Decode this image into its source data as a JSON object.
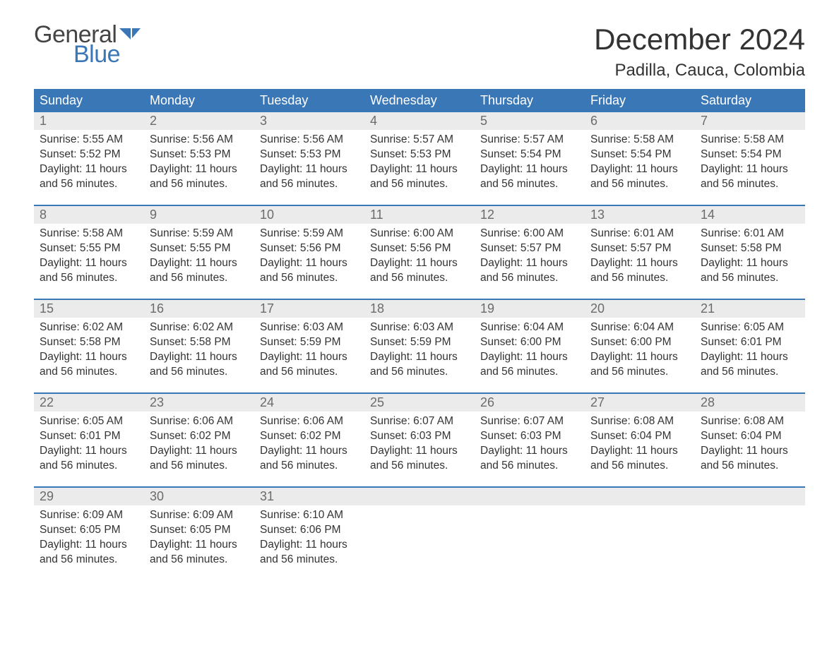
{
  "logo": {
    "text_general": "General",
    "text_blue": "Blue",
    "general_color": "#444444",
    "blue_color": "#3a77b7"
  },
  "header": {
    "month_title": "December 2024",
    "location": "Padilla, Cauca, Colombia"
  },
  "calendar": {
    "type": "table",
    "header_bg": "#3a77b7",
    "header_fg": "#ffffff",
    "daynum_bg": "#ebebeb",
    "daynum_fg": "#6b6b6b",
    "week_divider_color": "#3a77b7",
    "body_text_color": "#333333",
    "background_color": "#ffffff",
    "header_fontsize": 18,
    "body_fontsize": 15.5,
    "columns": [
      "Sunday",
      "Monday",
      "Tuesday",
      "Wednesday",
      "Thursday",
      "Friday",
      "Saturday"
    ],
    "daylight_text": "Daylight: 11 hours and 56 minutes.",
    "days": [
      {
        "n": "1",
        "sr": "Sunrise: 5:55 AM",
        "ss": "Sunset: 5:52 PM"
      },
      {
        "n": "2",
        "sr": "Sunrise: 5:56 AM",
        "ss": "Sunset: 5:53 PM"
      },
      {
        "n": "3",
        "sr": "Sunrise: 5:56 AM",
        "ss": "Sunset: 5:53 PM"
      },
      {
        "n": "4",
        "sr": "Sunrise: 5:57 AM",
        "ss": "Sunset: 5:53 PM"
      },
      {
        "n": "5",
        "sr": "Sunrise: 5:57 AM",
        "ss": "Sunset: 5:54 PM"
      },
      {
        "n": "6",
        "sr": "Sunrise: 5:58 AM",
        "ss": "Sunset: 5:54 PM"
      },
      {
        "n": "7",
        "sr": "Sunrise: 5:58 AM",
        "ss": "Sunset: 5:54 PM"
      },
      {
        "n": "8",
        "sr": "Sunrise: 5:58 AM",
        "ss": "Sunset: 5:55 PM"
      },
      {
        "n": "9",
        "sr": "Sunrise: 5:59 AM",
        "ss": "Sunset: 5:55 PM"
      },
      {
        "n": "10",
        "sr": "Sunrise: 5:59 AM",
        "ss": "Sunset: 5:56 PM"
      },
      {
        "n": "11",
        "sr": "Sunrise: 6:00 AM",
        "ss": "Sunset: 5:56 PM"
      },
      {
        "n": "12",
        "sr": "Sunrise: 6:00 AM",
        "ss": "Sunset: 5:57 PM"
      },
      {
        "n": "13",
        "sr": "Sunrise: 6:01 AM",
        "ss": "Sunset: 5:57 PM"
      },
      {
        "n": "14",
        "sr": "Sunrise: 6:01 AM",
        "ss": "Sunset: 5:58 PM"
      },
      {
        "n": "15",
        "sr": "Sunrise: 6:02 AM",
        "ss": "Sunset: 5:58 PM"
      },
      {
        "n": "16",
        "sr": "Sunrise: 6:02 AM",
        "ss": "Sunset: 5:58 PM"
      },
      {
        "n": "17",
        "sr": "Sunrise: 6:03 AM",
        "ss": "Sunset: 5:59 PM"
      },
      {
        "n": "18",
        "sr": "Sunrise: 6:03 AM",
        "ss": "Sunset: 5:59 PM"
      },
      {
        "n": "19",
        "sr": "Sunrise: 6:04 AM",
        "ss": "Sunset: 6:00 PM"
      },
      {
        "n": "20",
        "sr": "Sunrise: 6:04 AM",
        "ss": "Sunset: 6:00 PM"
      },
      {
        "n": "21",
        "sr": "Sunrise: 6:05 AM",
        "ss": "Sunset: 6:01 PM"
      },
      {
        "n": "22",
        "sr": "Sunrise: 6:05 AM",
        "ss": "Sunset: 6:01 PM"
      },
      {
        "n": "23",
        "sr": "Sunrise: 6:06 AM",
        "ss": "Sunset: 6:02 PM"
      },
      {
        "n": "24",
        "sr": "Sunrise: 6:06 AM",
        "ss": "Sunset: 6:02 PM"
      },
      {
        "n": "25",
        "sr": "Sunrise: 6:07 AM",
        "ss": "Sunset: 6:03 PM"
      },
      {
        "n": "26",
        "sr": "Sunrise: 6:07 AM",
        "ss": "Sunset: 6:03 PM"
      },
      {
        "n": "27",
        "sr": "Sunrise: 6:08 AM",
        "ss": "Sunset: 6:04 PM"
      },
      {
        "n": "28",
        "sr": "Sunrise: 6:08 AM",
        "ss": "Sunset: 6:04 PM"
      },
      {
        "n": "29",
        "sr": "Sunrise: 6:09 AM",
        "ss": "Sunset: 6:05 PM"
      },
      {
        "n": "30",
        "sr": "Sunrise: 6:09 AM",
        "ss": "Sunset: 6:05 PM"
      },
      {
        "n": "31",
        "sr": "Sunrise: 6:10 AM",
        "ss": "Sunset: 6:06 PM"
      }
    ]
  }
}
